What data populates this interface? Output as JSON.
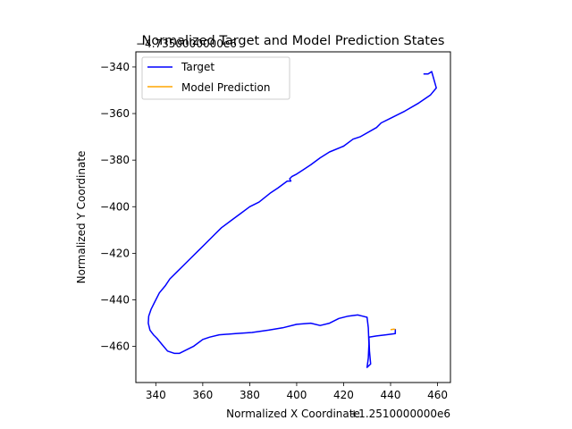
{
  "chart_data": {
    "type": "line",
    "title": "Normalized Target and Model Prediction States",
    "xlabel": "Normalized X Coordinate",
    "ylabel": "Normalized Y Coordinate",
    "x_offset_label": "+1.2510000000e6",
    "y_offset_label": "−4.7350000000e6",
    "xlim": [
      331.5,
      465.5
    ],
    "ylim": [
      -475.5,
      -333.5
    ],
    "xticks": [
      340,
      360,
      380,
      400,
      420,
      440,
      460
    ],
    "yticks": [
      -460,
      -440,
      -420,
      -400,
      -380,
      -360,
      -340
    ],
    "grid": false,
    "legend_position": "top-left",
    "series": [
      {
        "name": "Target",
        "color": "#0000ff",
        "points": [
          [
            454,
            -343
          ],
          [
            456,
            -343
          ],
          [
            457.5,
            -342
          ],
          [
            459.5,
            -349
          ],
          [
            457,
            -352
          ],
          [
            452,
            -355.5
          ],
          [
            446,
            -359
          ],
          [
            440,
            -362
          ],
          [
            436,
            -364
          ],
          [
            434,
            -366
          ],
          [
            427,
            -370
          ],
          [
            424,
            -371
          ],
          [
            420,
            -374
          ],
          [
            414,
            -376.5
          ],
          [
            410,
            -379
          ],
          [
            406,
            -382
          ],
          [
            403,
            -384
          ],
          [
            400,
            -386
          ],
          [
            398,
            -387
          ],
          [
            397,
            -388
          ],
          [
            397.5,
            -389
          ],
          [
            396,
            -389
          ],
          [
            392,
            -392
          ],
          [
            389,
            -394
          ],
          [
            384,
            -398
          ],
          [
            380,
            -400
          ],
          [
            376,
            -403
          ],
          [
            372,
            -406
          ],
          [
            368,
            -409
          ],
          [
            365,
            -412
          ],
          [
            361,
            -416
          ],
          [
            358,
            -419
          ],
          [
            355,
            -422
          ],
          [
            352,
            -425
          ],
          [
            349,
            -428
          ],
          [
            346,
            -431
          ],
          [
            344,
            -434
          ],
          [
            341.5,
            -437
          ],
          [
            339.5,
            -441
          ],
          [
            338,
            -444
          ],
          [
            337,
            -447
          ],
          [
            336.8,
            -450
          ],
          [
            337.5,
            -453
          ],
          [
            339,
            -455
          ],
          [
            340.5,
            -456.5
          ],
          [
            342.5,
            -459
          ],
          [
            345,
            -462
          ],
          [
            348,
            -463
          ],
          [
            350,
            -463
          ],
          [
            354,
            -461
          ],
          [
            356,
            -460
          ],
          [
            360,
            -457
          ],
          [
            363,
            -456
          ],
          [
            367,
            -455
          ],
          [
            374,
            -454.5
          ],
          [
            381,
            -454
          ],
          [
            388,
            -453
          ],
          [
            394,
            -452
          ],
          [
            400,
            -450.5
          ],
          [
            406,
            -450
          ],
          [
            410,
            -451
          ],
          [
            414,
            -450
          ],
          [
            418,
            -448
          ],
          [
            422,
            -447
          ],
          [
            426,
            -446.5
          ],
          [
            428,
            -447
          ],
          [
            430,
            -447.5
          ],
          [
            430.5,
            -452
          ],
          [
            430.8,
            -459
          ],
          [
            430.5,
            -465
          ],
          [
            430,
            -469
          ],
          [
            431.5,
            -467.5
          ],
          [
            431,
            -462
          ],
          [
            430.8,
            -456
          ],
          [
            434,
            -455.5
          ],
          [
            438,
            -455
          ],
          [
            442,
            -454.5
          ],
          [
            442,
            -452.5
          ]
        ]
      },
      {
        "name": "Model Prediction",
        "color": "#ffa500",
        "points": [
          [
            440,
            -452.8
          ],
          [
            441.5,
            -452.6
          ],
          [
            442,
            -452.7
          ]
        ]
      }
    ]
  }
}
